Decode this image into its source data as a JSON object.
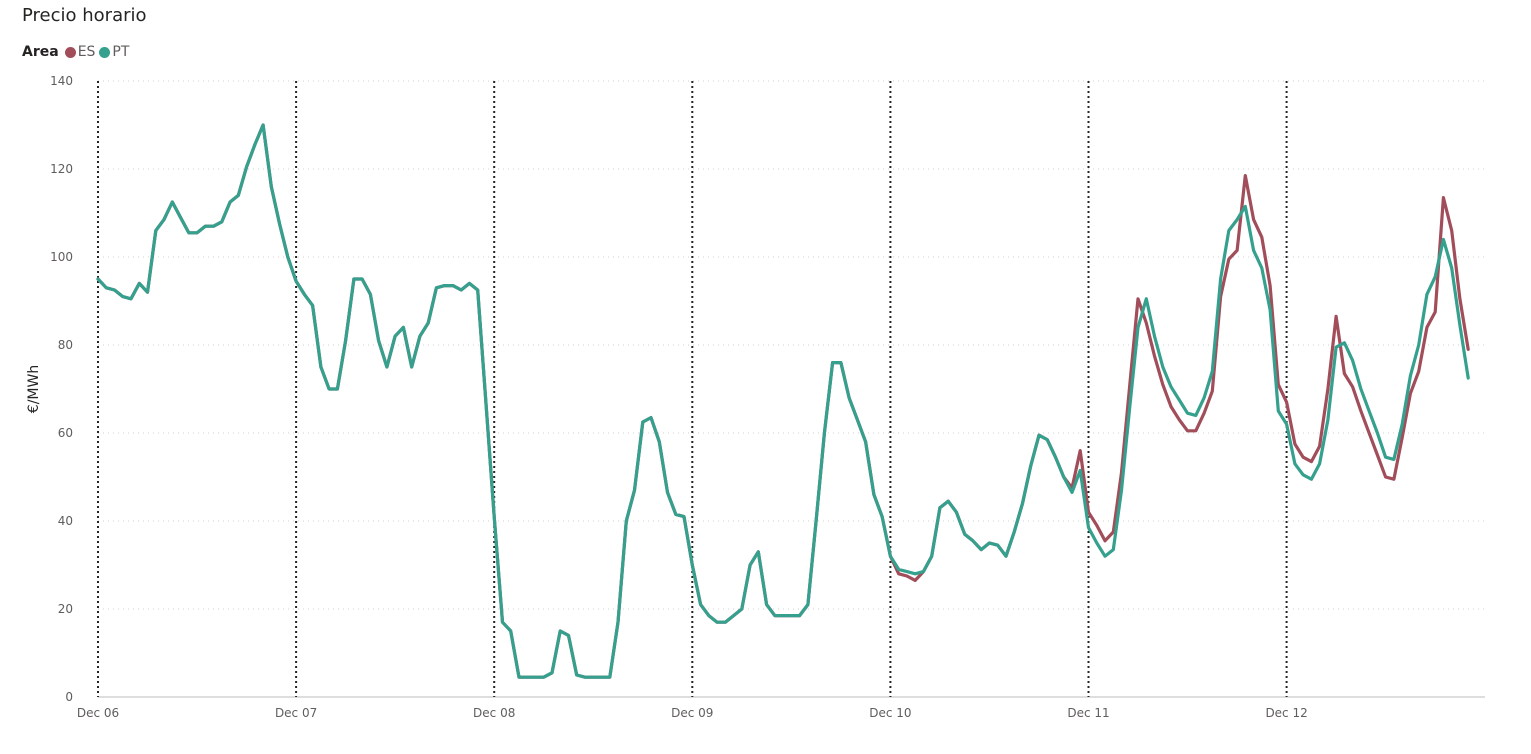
{
  "chart_data": {
    "type": "line",
    "title": "Precio horario",
    "legend_title": "Area",
    "xlabel": "",
    "ylabel": "€/MWh",
    "ylim": [
      0,
      140
    ],
    "y_ticks": [
      0,
      20,
      40,
      60,
      80,
      100,
      120,
      140
    ],
    "x_tick_labels": [
      "Dec 06",
      "Dec 07",
      "Dec 08",
      "Dec 09",
      "Dec 10",
      "Dec 11",
      "Dec 12"
    ],
    "grid": true,
    "legend_position": "top-left",
    "series": [
      {
        "name": "ES",
        "color": "#A14D5A",
        "points": [
          [
            0,
            95
          ],
          [
            1,
            93
          ],
          [
            2,
            92.5
          ],
          [
            3,
            91
          ],
          [
            4,
            90.5
          ],
          [
            5,
            94
          ],
          [
            6,
            92
          ],
          [
            7,
            106
          ],
          [
            8,
            108.5
          ],
          [
            9,
            112.5
          ],
          [
            10,
            109
          ],
          [
            11,
            105.5
          ],
          [
            12,
            105.5
          ],
          [
            13,
            107
          ],
          [
            14,
            107
          ],
          [
            15,
            108
          ],
          [
            16,
            112.5
          ],
          [
            17,
            114
          ],
          [
            18,
            120.5
          ],
          [
            19,
            125.5
          ],
          [
            20,
            130
          ],
          [
            21,
            116
          ],
          [
            22,
            107.5
          ],
          [
            23,
            100
          ],
          [
            24,
            94.5
          ],
          [
            25,
            91.5
          ],
          [
            26,
            89
          ],
          [
            27,
            75
          ],
          [
            28,
            70
          ],
          [
            29,
            70
          ],
          [
            30,
            81
          ],
          [
            31,
            95
          ],
          [
            32,
            95
          ],
          [
            33,
            91.5
          ],
          [
            34,
            81
          ],
          [
            35,
            75
          ],
          [
            36,
            82
          ],
          [
            37,
            84
          ],
          [
            38,
            75
          ],
          [
            39,
            82
          ],
          [
            40,
            85
          ],
          [
            41,
            93
          ],
          [
            42,
            93.5
          ],
          [
            43,
            93.5
          ],
          [
            44,
            92.5
          ],
          [
            45,
            94
          ],
          [
            46,
            92.5
          ],
          [
            47,
            67
          ],
          [
            48,
            41
          ],
          [
            49,
            17
          ],
          [
            50,
            15
          ],
          [
            51,
            4.5
          ],
          [
            52,
            4.5
          ],
          [
            53,
            4.5
          ],
          [
            54,
            4.5
          ],
          [
            55,
            5.5
          ],
          [
            56,
            15
          ],
          [
            57,
            14
          ],
          [
            58,
            5
          ],
          [
            59,
            4.5
          ],
          [
            60,
            4.5
          ],
          [
            61,
            4.5
          ],
          [
            62,
            4.5
          ],
          [
            63,
            17
          ],
          [
            64,
            40
          ],
          [
            65,
            47
          ],
          [
            66,
            62.5
          ],
          [
            67,
            63.5
          ],
          [
            68,
            58
          ],
          [
            69,
            46.5
          ],
          [
            70,
            41.5
          ],
          [
            71,
            41
          ],
          [
            72,
            30
          ],
          [
            73,
            21
          ],
          [
            74,
            18.5
          ],
          [
            75,
            17
          ],
          [
            76,
            17
          ],
          [
            77,
            18.5
          ],
          [
            78,
            20
          ],
          [
            79,
            30
          ],
          [
            80,
            33
          ],
          [
            81,
            21
          ],
          [
            82,
            18.5
          ],
          [
            83,
            18.5
          ],
          [
            84,
            18.5
          ],
          [
            85,
            18.5
          ],
          [
            86,
            21
          ],
          [
            87,
            40
          ],
          [
            88,
            60
          ],
          [
            89,
            76
          ],
          [
            90,
            76
          ],
          [
            91,
            68
          ],
          [
            92,
            63
          ],
          [
            93,
            58
          ],
          [
            94,
            46
          ],
          [
            95,
            41
          ],
          [
            96,
            32
          ],
          [
            97,
            28
          ],
          [
            98,
            27.5
          ],
          [
            99,
            26.5
          ],
          [
            100,
            28.5
          ],
          [
            101,
            32
          ],
          [
            102,
            43
          ],
          [
            103,
            44.5
          ],
          [
            104,
            42
          ],
          [
            105,
            37
          ],
          [
            106,
            35.5
          ],
          [
            107,
            33.5
          ],
          [
            108,
            35
          ],
          [
            109,
            34.5
          ],
          [
            110,
            32
          ],
          [
            111,
            37.5
          ],
          [
            112,
            44
          ],
          [
            113,
            52.5
          ],
          [
            114,
            59.5
          ],
          [
            115,
            58.5
          ],
          [
            116,
            54.5
          ],
          [
            117,
            50
          ],
          [
            118,
            47.5
          ],
          [
            119,
            56
          ],
          [
            120,
            42
          ],
          [
            121,
            39
          ],
          [
            122,
            35.5
          ],
          [
            123,
            37.5
          ],
          [
            124,
            51
          ],
          [
            125,
            71
          ],
          [
            126,
            90.5
          ],
          [
            127,
            85
          ],
          [
            128,
            77.5
          ],
          [
            129,
            71
          ],
          [
            130,
            66
          ],
          [
            131,
            63
          ],
          [
            132,
            60.5
          ],
          [
            133,
            60.5
          ],
          [
            134,
            64.5
          ],
          [
            135,
            69.5
          ],
          [
            136,
            91
          ],
          [
            137,
            99.5
          ],
          [
            138,
            101.5
          ],
          [
            139,
            118.5
          ],
          [
            140,
            108.5
          ],
          [
            141,
            104.5
          ],
          [
            142,
            93.5
          ],
          [
            143,
            71
          ],
          [
            144,
            67
          ],
          [
            145,
            57.5
          ],
          [
            146,
            54.5
          ],
          [
            147,
            53.5
          ],
          [
            148,
            57
          ],
          [
            149,
            70
          ],
          [
            150,
            86.5
          ],
          [
            151,
            73.5
          ],
          [
            152,
            70.5
          ],
          [
            153,
            65
          ],
          [
            154,
            60
          ],
          [
            155,
            55
          ],
          [
            156,
            50
          ],
          [
            157,
            49.5
          ],
          [
            158,
            59
          ],
          [
            159,
            69
          ],
          [
            160,
            74
          ],
          [
            161,
            84
          ],
          [
            162,
            87.5
          ],
          [
            163,
            113.5
          ],
          [
            164,
            106
          ],
          [
            165,
            90.5
          ],
          [
            166,
            79
          ]
        ]
      },
      {
        "name": "PT",
        "color": "#35A08D",
        "points": [
          [
            0,
            95
          ],
          [
            1,
            93
          ],
          [
            2,
            92.5
          ],
          [
            3,
            91
          ],
          [
            4,
            90.5
          ],
          [
            5,
            94
          ],
          [
            6,
            92
          ],
          [
            7,
            106
          ],
          [
            8,
            108.5
          ],
          [
            9,
            112.5
          ],
          [
            10,
            109
          ],
          [
            11,
            105.5
          ],
          [
            12,
            105.5
          ],
          [
            13,
            107
          ],
          [
            14,
            107
          ],
          [
            15,
            108
          ],
          [
            16,
            112.5
          ],
          [
            17,
            114
          ],
          [
            18,
            120.5
          ],
          [
            19,
            125.5
          ],
          [
            20,
            130
          ],
          [
            21,
            116
          ],
          [
            22,
            107.5
          ],
          [
            23,
            100
          ],
          [
            24,
            94.5
          ],
          [
            25,
            91.5
          ],
          [
            26,
            89
          ],
          [
            27,
            75
          ],
          [
            28,
            70
          ],
          [
            29,
            70
          ],
          [
            30,
            81
          ],
          [
            31,
            95
          ],
          [
            32,
            95
          ],
          [
            33,
            91.5
          ],
          [
            34,
            81
          ],
          [
            35,
            75
          ],
          [
            36,
            82
          ],
          [
            37,
            84
          ],
          [
            38,
            75
          ],
          [
            39,
            82
          ],
          [
            40,
            85
          ],
          [
            41,
            93
          ],
          [
            42,
            93.5
          ],
          [
            43,
            93.5
          ],
          [
            44,
            92.5
          ],
          [
            45,
            94
          ],
          [
            46,
            92.5
          ],
          [
            47,
            67
          ],
          [
            48,
            41
          ],
          [
            49,
            17
          ],
          [
            50,
            15
          ],
          [
            51,
            4.5
          ],
          [
            52,
            4.5
          ],
          [
            53,
            4.5
          ],
          [
            54,
            4.5
          ],
          [
            55,
            5.5
          ],
          [
            56,
            15
          ],
          [
            57,
            14
          ],
          [
            58,
            5
          ],
          [
            59,
            4.5
          ],
          [
            60,
            4.5
          ],
          [
            61,
            4.5
          ],
          [
            62,
            4.5
          ],
          [
            63,
            17
          ],
          [
            64,
            40
          ],
          [
            65,
            47
          ],
          [
            66,
            62.5
          ],
          [
            67,
            63.5
          ],
          [
            68,
            58
          ],
          [
            69,
            46.5
          ],
          [
            70,
            41.5
          ],
          [
            71,
            41
          ],
          [
            72,
            30
          ],
          [
            73,
            21
          ],
          [
            74,
            18.5
          ],
          [
            75,
            17
          ],
          [
            76,
            17
          ],
          [
            77,
            18.5
          ],
          [
            78,
            20
          ],
          [
            79,
            30
          ],
          [
            80,
            33
          ],
          [
            81,
            21
          ],
          [
            82,
            18.5
          ],
          [
            83,
            18.5
          ],
          [
            84,
            18.5
          ],
          [
            85,
            18.5
          ],
          [
            86,
            21
          ],
          [
            87,
            40
          ],
          [
            88,
            60
          ],
          [
            89,
            76
          ],
          [
            90,
            76
          ],
          [
            91,
            68
          ],
          [
            92,
            63
          ],
          [
            93,
            58
          ],
          [
            94,
            46
          ],
          [
            95,
            41
          ],
          [
            96,
            32
          ],
          [
            97,
            29
          ],
          [
            98,
            28.5
          ],
          [
            99,
            28
          ],
          [
            100,
            28.5
          ],
          [
            101,
            32
          ],
          [
            102,
            43
          ],
          [
            103,
            44.5
          ],
          [
            104,
            42
          ],
          [
            105,
            37
          ],
          [
            106,
            35.5
          ],
          [
            107,
            33.5
          ],
          [
            108,
            35
          ],
          [
            109,
            34.5
          ],
          [
            110,
            32
          ],
          [
            111,
            37.5
          ],
          [
            112,
            44
          ],
          [
            113,
            52.5
          ],
          [
            114,
            59.5
          ],
          [
            115,
            58.5
          ],
          [
            116,
            54.5
          ],
          [
            117,
            50
          ],
          [
            118,
            46.5
          ],
          [
            119,
            51.5
          ],
          [
            120,
            38.5
          ],
          [
            121,
            35
          ],
          [
            122,
            32
          ],
          [
            123,
            33.5
          ],
          [
            124,
            47
          ],
          [
            125,
            66
          ],
          [
            126,
            84
          ],
          [
            127,
            90.5
          ],
          [
            128,
            82
          ],
          [
            129,
            75
          ],
          [
            130,
            70.5
          ],
          [
            131,
            67.5
          ],
          [
            132,
            64.5
          ],
          [
            133,
            64
          ],
          [
            134,
            68
          ],
          [
            135,
            74
          ],
          [
            136,
            95
          ],
          [
            137,
            106
          ],
          [
            138,
            108.5
          ],
          [
            139,
            111.5
          ],
          [
            140,
            101.5
          ],
          [
            141,
            97.5
          ],
          [
            142,
            88
          ],
          [
            143,
            65
          ],
          [
            144,
            62
          ],
          [
            145,
            53
          ],
          [
            146,
            50.5
          ],
          [
            147,
            49.5
          ],
          [
            148,
            53
          ],
          [
            149,
            63
          ],
          [
            150,
            79.5
          ],
          [
            151,
            80.5
          ],
          [
            152,
            76.5
          ],
          [
            153,
            70
          ],
          [
            154,
            65
          ],
          [
            155,
            60
          ],
          [
            156,
            54.5
          ],
          [
            157,
            54
          ],
          [
            158,
            62
          ],
          [
            159,
            73
          ],
          [
            160,
            80
          ],
          [
            161,
            91.5
          ],
          [
            162,
            95.5
          ],
          [
            163,
            104
          ],
          [
            164,
            97.5
          ],
          [
            165,
            84.5
          ],
          [
            166,
            72.5
          ]
        ]
      }
    ]
  }
}
